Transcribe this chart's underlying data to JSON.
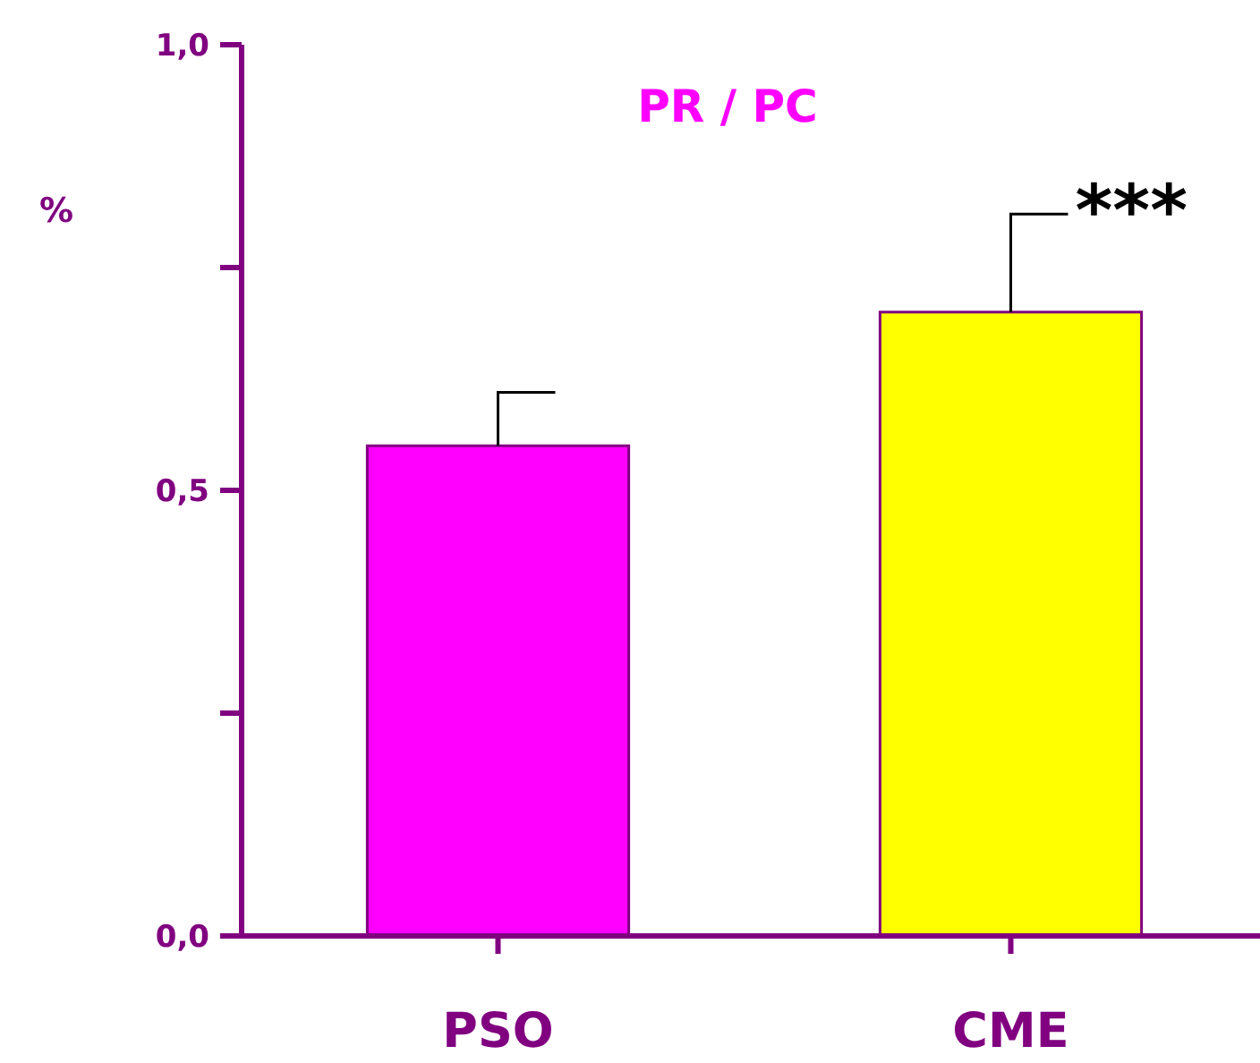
{
  "chart_data": {
    "type": "bar",
    "title": "PR / PC",
    "ylabel": "%",
    "categories": [
      "PSO",
      "CME"
    ],
    "values": [
      0.55,
      0.7
    ],
    "colors": [
      "#ff00ff",
      "#ffff00"
    ],
    "errors": [
      [
        0.55,
        0.61
      ],
      [
        0.7,
        0.81
      ]
    ],
    "ylim": [
      0,
      1
    ],
    "yticks": [
      {
        "value": 0,
        "label": "0,0"
      },
      {
        "value": 0.25,
        "label": null
      },
      {
        "value": 0.5,
        "label": "0,5"
      },
      {
        "value": 0.75,
        "label": null
      },
      {
        "value": 1,
        "label": "1,0"
      }
    ],
    "annotations": [
      {
        "text": "***",
        "x": "CME",
        "y": 0.81
      }
    ],
    "grid": false
  }
}
